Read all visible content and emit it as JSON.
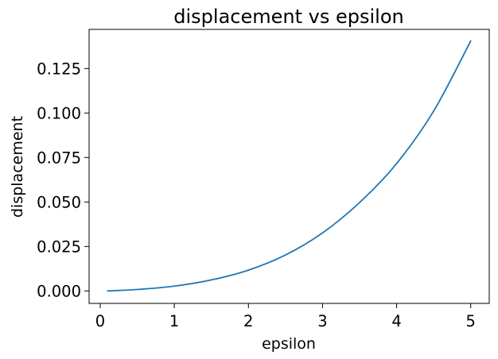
{
  "chart_data": {
    "type": "line",
    "title": "displacement vs epsilon",
    "xlabel": "epsilon",
    "ylabel": "displacement",
    "xlim": [
      -0.15,
      5.25
    ],
    "ylim": [
      -0.007,
      0.147
    ],
    "xticks": [
      0,
      1,
      2,
      3,
      4,
      5
    ],
    "yticks": [
      0.0,
      0.025,
      0.05,
      0.075,
      0.1,
      0.125
    ],
    "xtick_labels": [
      "0",
      "1",
      "2",
      "3",
      "4",
      "5"
    ],
    "ytick_labels": [
      "0.000",
      "0.025",
      "0.050",
      "0.075",
      "0.100",
      "0.125"
    ],
    "grid": false,
    "series": [
      {
        "color": "#1f77b4",
        "x": [
          0.1,
          0.5,
          1.0,
          1.5,
          2.0,
          2.5,
          3.0,
          3.5,
          4.0,
          4.5,
          5.0
        ],
        "y": [
          0.0,
          0.0008,
          0.0027,
          0.0062,
          0.0117,
          0.0202,
          0.0326,
          0.0497,
          0.0716,
          0.1011,
          0.1405
        ]
      }
    ]
  }
}
